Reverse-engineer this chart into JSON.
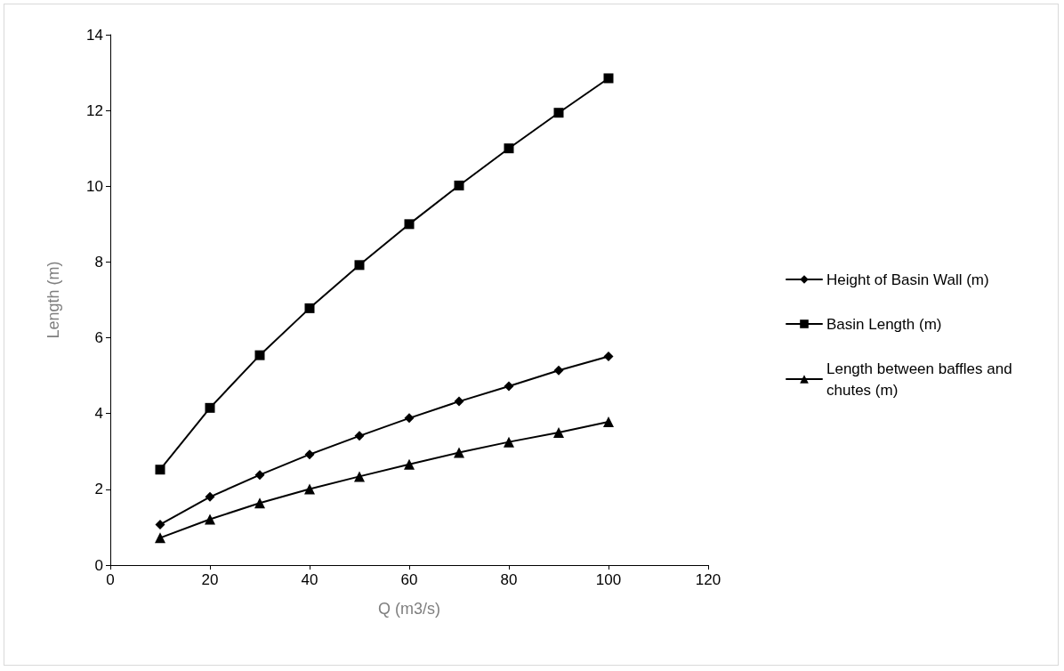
{
  "chart_data": {
    "type": "line",
    "xlabel": "Q (m3/s)",
    "ylabel": "Length (m)",
    "x": [
      10,
      20,
      30,
      40,
      50,
      60,
      70,
      80,
      90,
      100
    ],
    "series": [
      {
        "name": "Height of Basin Wall (m)",
        "color": "#000000",
        "marker": "diamond",
        "values": [
          1.07,
          1.8,
          2.38,
          2.92,
          3.41,
          3.88,
          4.32,
          4.72,
          5.14,
          5.51
        ]
      },
      {
        "name": "Basin Length (m)",
        "color": "#000000",
        "marker": "square",
        "values": [
          2.52,
          4.15,
          5.54,
          6.78,
          7.92,
          9.0,
          10.02,
          11.0,
          11.94,
          12.85
        ]
      },
      {
        "name": "Length between baffles and chutes (m)",
        "color": "#000000",
        "marker": "triangle",
        "values": [
          0.72,
          1.21,
          1.64,
          2.01,
          2.34,
          2.66,
          2.97,
          3.25,
          3.5,
          3.78
        ]
      }
    ],
    "xlim": [
      0,
      120
    ],
    "xticks": [
      0,
      20,
      40,
      60,
      80,
      100,
      120
    ],
    "ylim": [
      0,
      14
    ],
    "yticks": [
      0,
      2,
      4,
      6,
      8,
      10,
      12,
      14
    ],
    "grid": false,
    "legend": "right",
    "line_style": "solid"
  }
}
